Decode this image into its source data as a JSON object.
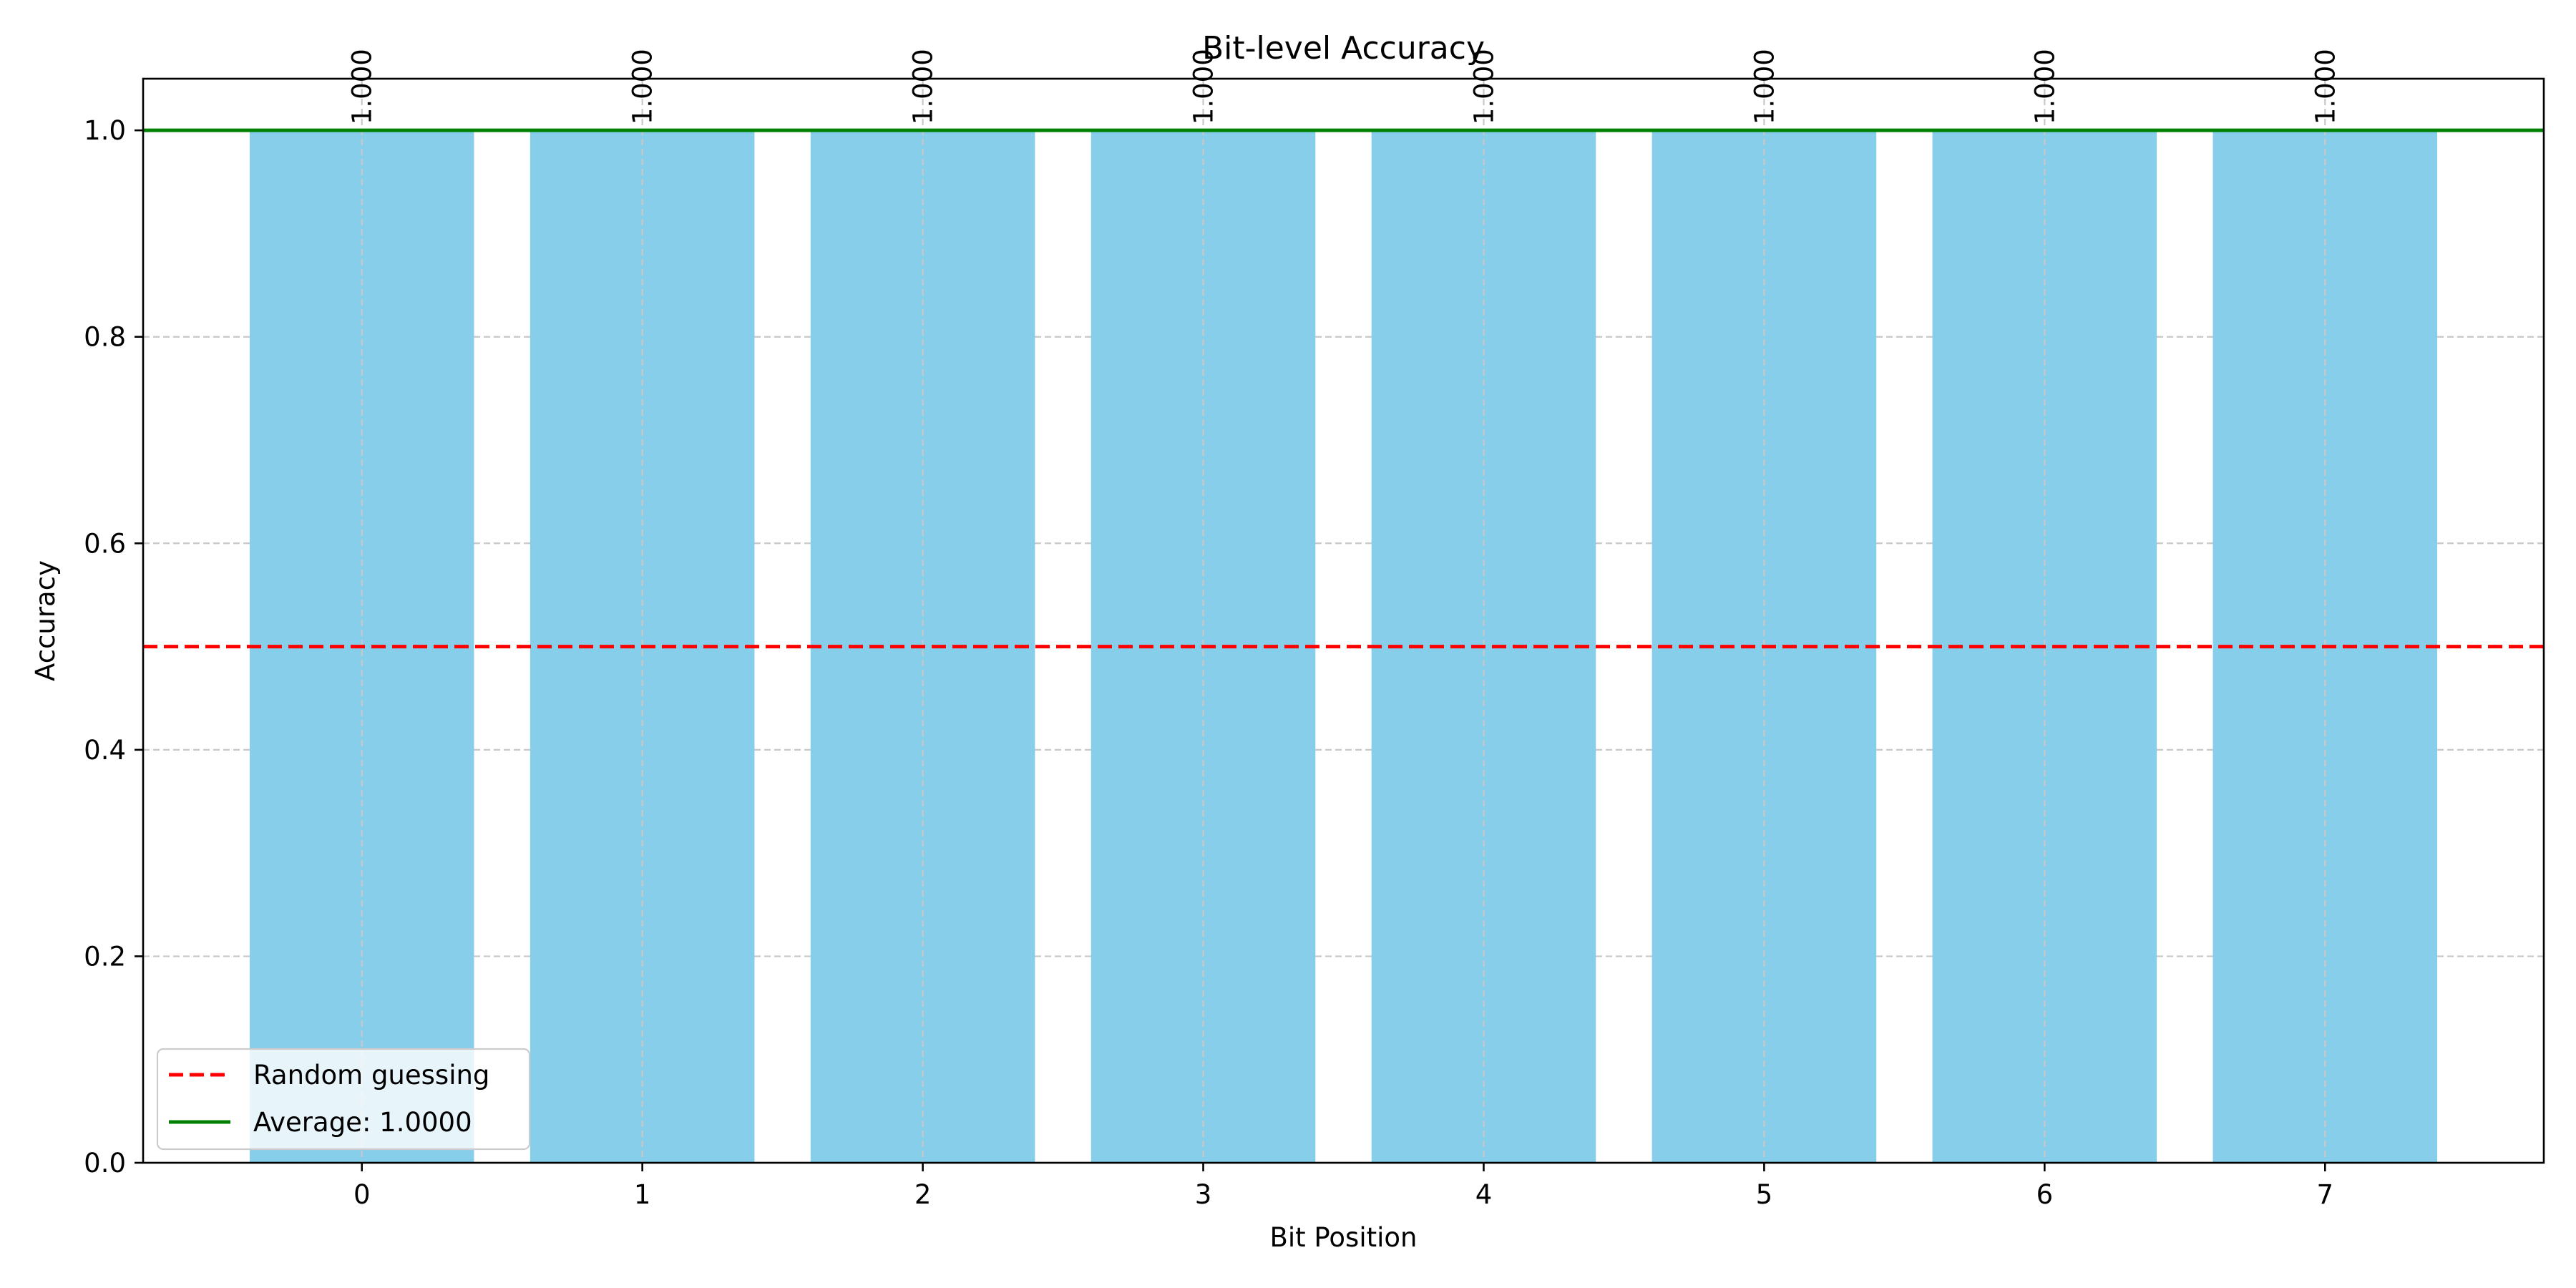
{
  "chart_data": {
    "type": "bar",
    "title": "Bit-level Accuracy",
    "xlabel": "Bit Position",
    "ylabel": "Accuracy",
    "categories": [
      "0",
      "1",
      "2",
      "3",
      "4",
      "5",
      "6",
      "7"
    ],
    "values": [
      1.0,
      1.0,
      1.0,
      1.0,
      1.0,
      1.0,
      1.0,
      1.0
    ],
    "data_labels": [
      "1.000",
      "1.000",
      "1.000",
      "1.000",
      "1.000",
      "1.000",
      "1.000",
      "1.000"
    ],
    "xlim": [
      -0.78,
      7.78
    ],
    "ylim": [
      0,
      1.05
    ],
    "yticks": [
      0.0,
      0.2,
      0.4,
      0.6,
      0.8,
      1.0
    ],
    "ytick_labels": [
      "0.0",
      "0.2",
      "0.4",
      "0.6",
      "0.8",
      "1.0"
    ],
    "bar_color": "#87CEEB",
    "grid": true,
    "reference_lines": [
      {
        "label": "Random guessing",
        "y": 0.5,
        "color": "#ff0000",
        "style": "dashed"
      },
      {
        "label": "Average: 1.0000",
        "y": 1.0,
        "color": "#008000",
        "style": "solid"
      }
    ],
    "legend_position": "lower-left"
  }
}
